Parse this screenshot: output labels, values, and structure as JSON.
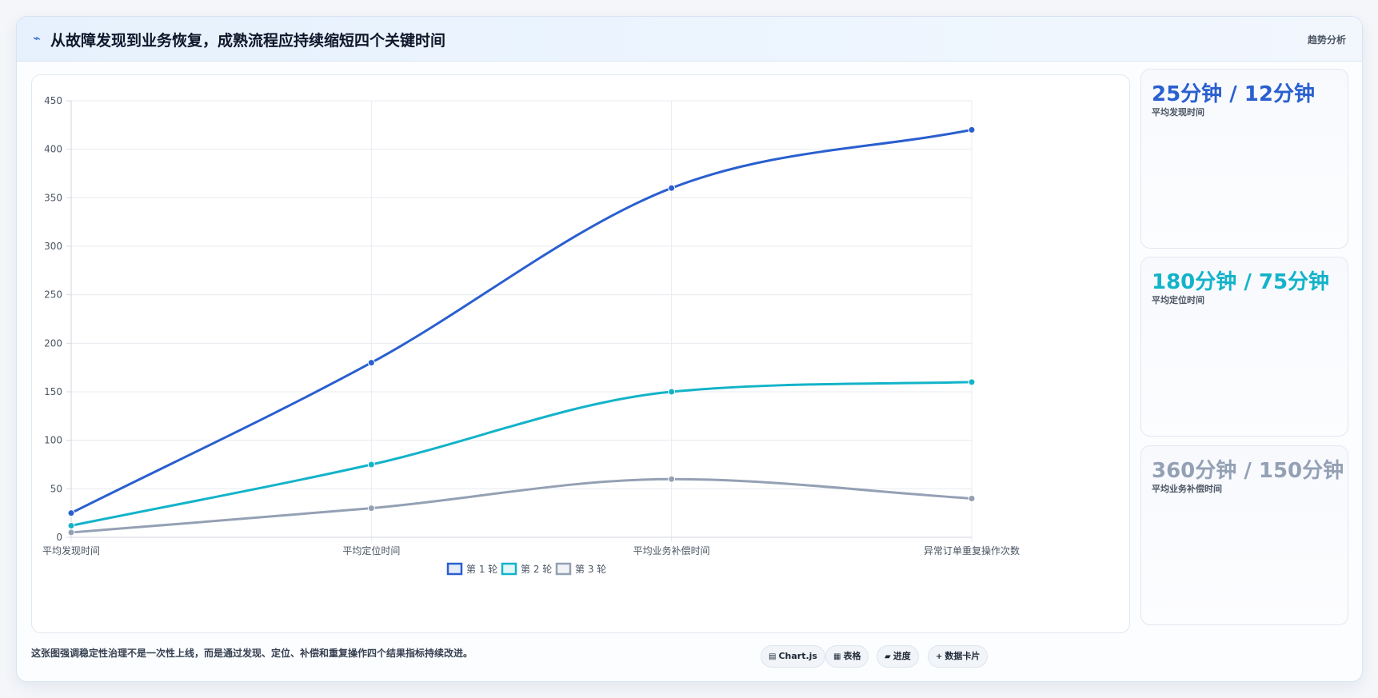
{
  "header": {
    "icon": "trend-icon",
    "title": "从故障发现到业务恢复，成熟流程应持续缩短四个关键时间",
    "tag": "趋势分析"
  },
  "chart_data": {
    "type": "line",
    "categories": [
      "平均发现时间",
      "平均定位时间",
      "平均业务补偿时间",
      "异常订单重复操作次数"
    ],
    "series": [
      {
        "name": "第 1 轮",
        "values": [
          25,
          180,
          360,
          420
        ],
        "color": "#2a5fcf"
      },
      {
        "name": "第 2 轮",
        "values": [
          12,
          75,
          150,
          160
        ],
        "color": "#13b3c9"
      },
      {
        "name": "第 3 轮",
        "values": [
          5,
          30,
          60,
          40
        ],
        "color": "#94a0b4"
      }
    ],
    "ylim": [
      0,
      450
    ],
    "yticks": [
      0,
      50,
      100,
      150,
      200,
      250,
      300,
      350,
      400,
      450
    ],
    "grid": true,
    "curve": "smooth",
    "legend_position": "bottom"
  },
  "kpis": [
    {
      "value": "25分钟 / 12分钟",
      "label": "平均发现时间",
      "color": "#2a5fcf"
    },
    {
      "value": "180分钟 / 75分钟",
      "label": "平均定位时间",
      "color": "#13b3c9"
    },
    {
      "value": "360分钟 / 150分钟",
      "label": "平均业务补偿时间",
      "color": "#94a0b4"
    }
  ],
  "footer": {
    "note": "这张图强调稳定性治理不是一次性上线，而是通过发现、定位、补偿和重复操作四个结果指标持续改进。",
    "pills": [
      {
        "icon": "chart-icon",
        "glyph": "▤",
        "label": "Chart.js"
      },
      {
        "icon": "table-icon",
        "glyph": "▦",
        "label": "表格"
      },
      {
        "icon": "progress-icon",
        "glyph": "▰",
        "label": "进度"
      },
      {
        "icon": "card-icon",
        "glyph": "+",
        "label": "数据卡片"
      }
    ]
  }
}
